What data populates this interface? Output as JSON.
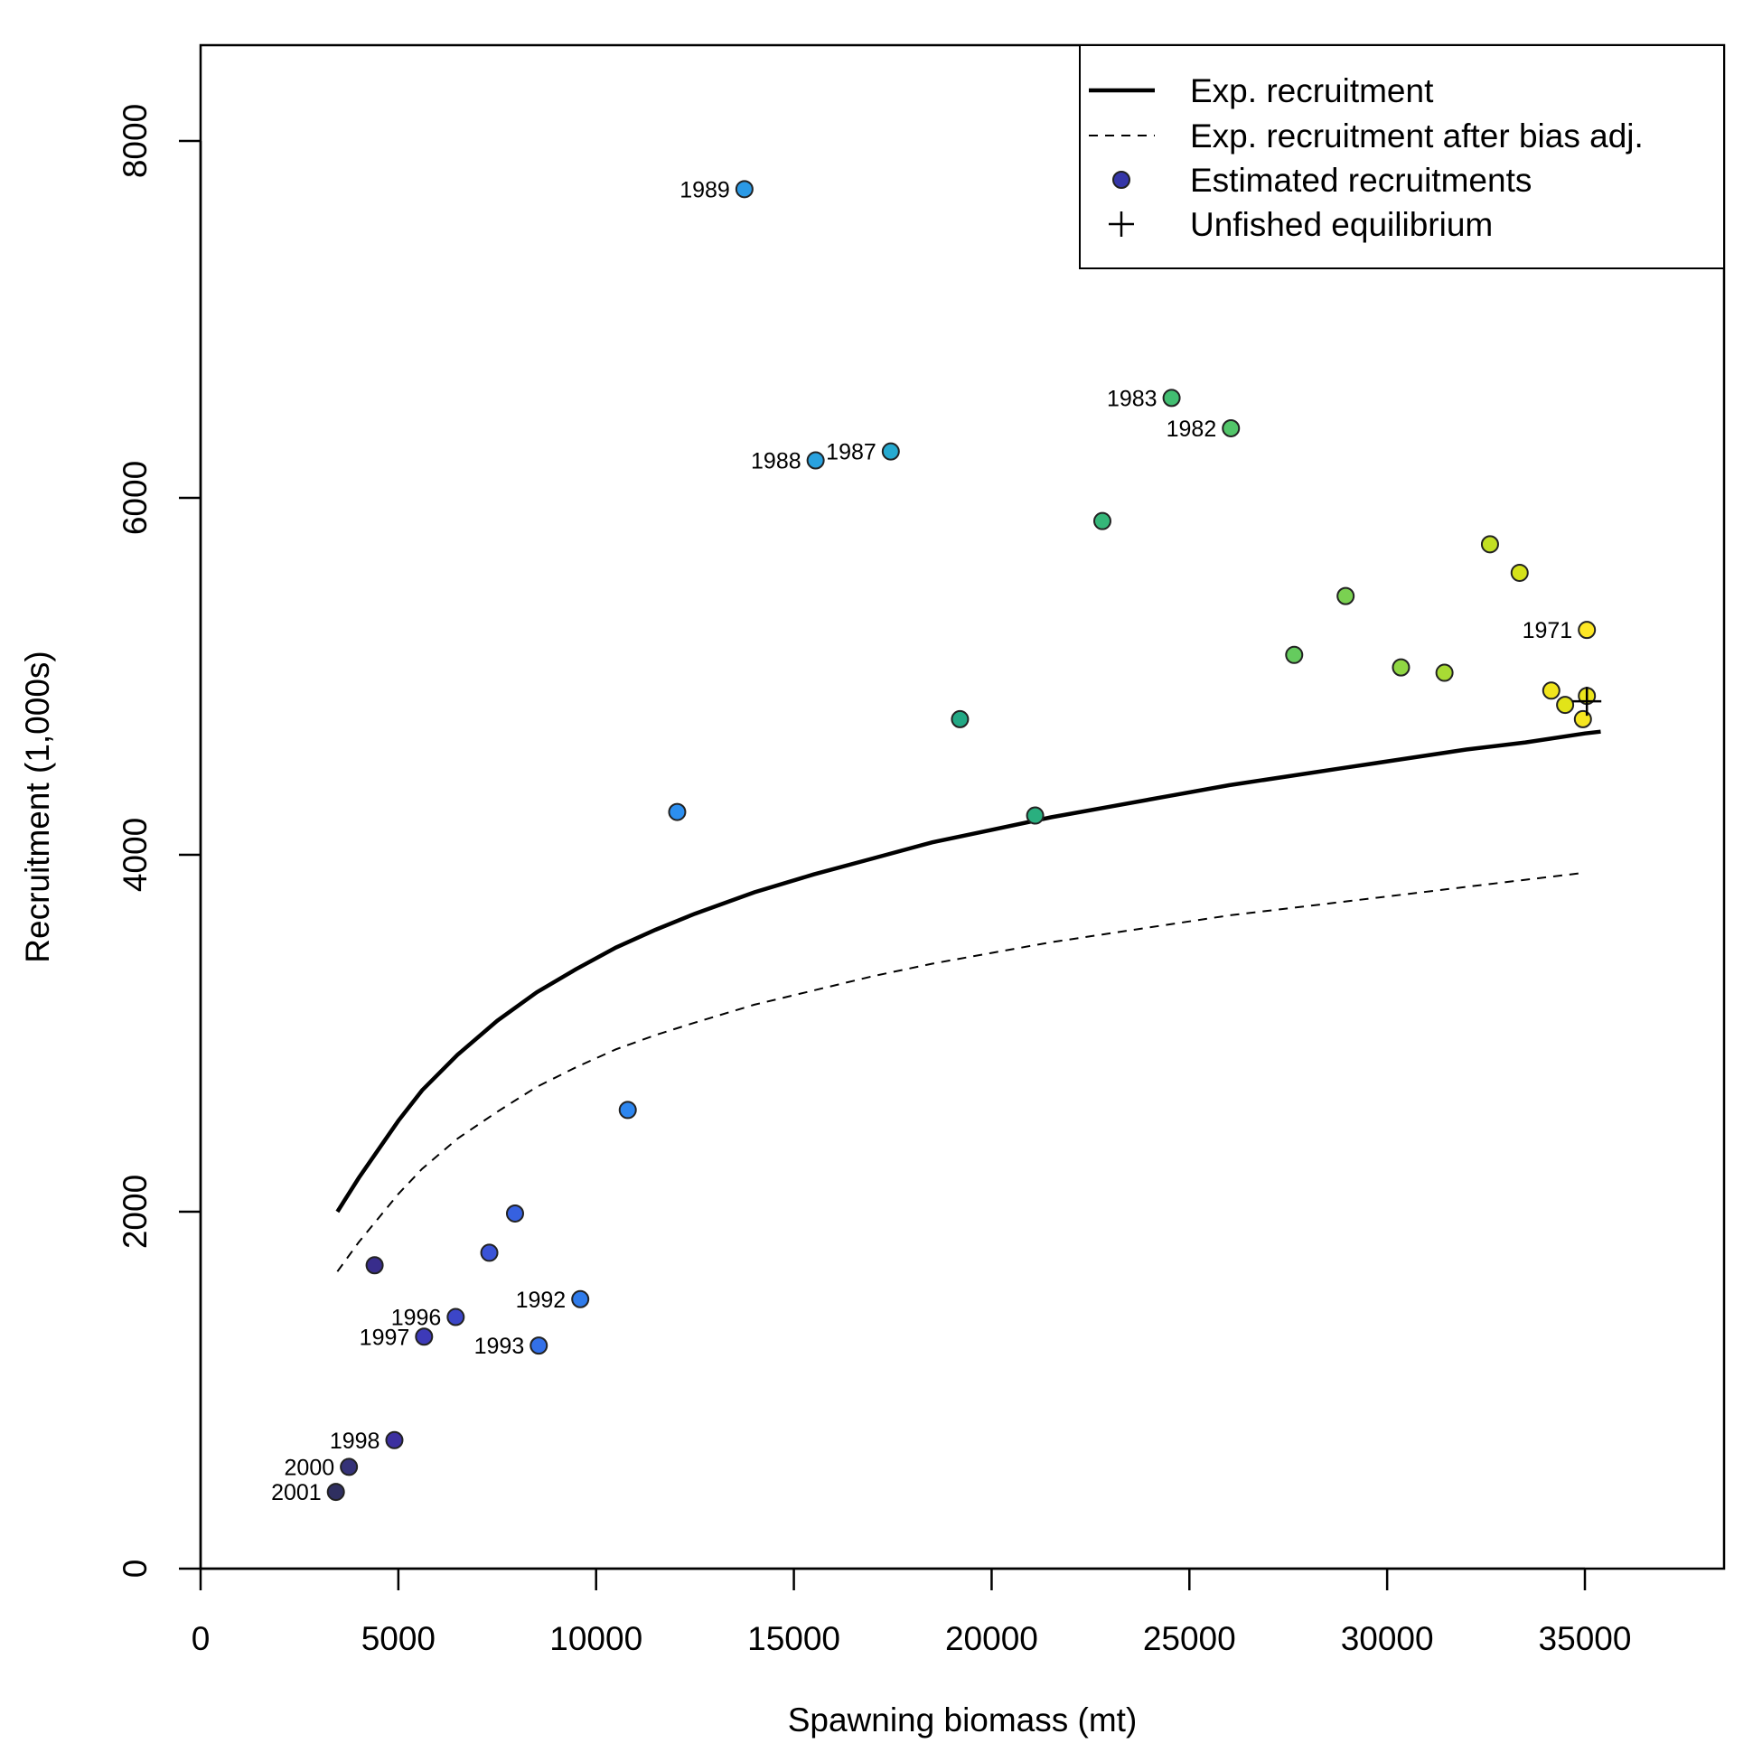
{
  "chart_data": {
    "type": "scatter",
    "title": "",
    "xlabel": "Spawning biomass (mt)",
    "ylabel": "Recruitment (1,000s)",
    "xlim": [
      0,
      38500
    ],
    "ylim": [
      0,
      8500
    ],
    "x_ticks": [
      "0",
      "5000",
      "10000",
      "15000",
      "20000",
      "25000",
      "30000",
      "35000"
    ],
    "y_ticks": [
      "0",
      "2000",
      "4000",
      "6000",
      "8000"
    ],
    "grid": false,
    "legend_position": "top-right",
    "legend": [
      {
        "label": "Exp. recruitment",
        "symbol": "solid-line"
      },
      {
        "label": "Exp. recruitment after bias adj.",
        "symbol": "dashed-line"
      },
      {
        "label": "Estimated recruitments",
        "symbol": "point"
      },
      {
        "label": "Unfished equilibrium",
        "symbol": "plus"
      }
    ],
    "series": [
      {
        "name": "Exp. recruitment",
        "style": "solid",
        "x": [
          3460,
          4000,
          5000,
          5600,
          6500,
          7500,
          8500,
          9500,
          10500,
          11500,
          12500,
          14000,
          15500,
          17000,
          18500,
          20000,
          21500,
          23000,
          24500,
          26000,
          27500,
          29000,
          30500,
          32000,
          33500,
          35000,
          35400
        ],
        "y": [
          2000,
          2190,
          2510,
          2680,
          2880,
          3070,
          3230,
          3360,
          3480,
          3580,
          3670,
          3790,
          3890,
          3980,
          4070,
          4140,
          4210,
          4270,
          4330,
          4390,
          4440,
          4490,
          4540,
          4590,
          4630,
          4680,
          4690
        ]
      },
      {
        "name": "Exp. recruitment after bias adj.",
        "style": "dashed",
        "x": [
          3460,
          4000,
          5000,
          5600,
          6500,
          7500,
          8500,
          9500,
          10500,
          11500,
          12500,
          14000,
          15500,
          17000,
          18500,
          20000,
          21500,
          23000,
          24500,
          26000,
          27500,
          29000,
          30500,
          32000,
          33500,
          35000
        ],
        "y": [
          1665,
          1830,
          2100,
          2240,
          2410,
          2560,
          2700,
          2810,
          2910,
          2990,
          3060,
          3160,
          3240,
          3320,
          3390,
          3450,
          3510,
          3560,
          3610,
          3660,
          3700,
          3740,
          3780,
          3820,
          3860,
          3900
        ]
      }
    ],
    "points": [
      {
        "x": 35050,
        "y": 5260,
        "color": "#fde725",
        "label": "1971"
      },
      {
        "x": 34150,
        "y": 4920,
        "color": "#f1e51d",
        "label": ""
      },
      {
        "x": 34500,
        "y": 4840,
        "color": "#e2e418",
        "label": ""
      },
      {
        "x": 34950,
        "y": 4760,
        "color": "#f6e620",
        "label": ""
      },
      {
        "x": 35050,
        "y": 4890,
        "color": "#ece51b",
        "label": ""
      },
      {
        "x": 33350,
        "y": 5580,
        "color": "#d5e21a",
        "label": ""
      },
      {
        "x": 32600,
        "y": 5740,
        "color": "#c2df23",
        "label": ""
      },
      {
        "x": 31450,
        "y": 5020,
        "color": "#a8db34",
        "label": ""
      },
      {
        "x": 30350,
        "y": 5050,
        "color": "#90d743",
        "label": ""
      },
      {
        "x": 28950,
        "y": 5450,
        "color": "#7ad151",
        "label": ""
      },
      {
        "x": 27650,
        "y": 5120,
        "color": "#65cb5e",
        "label": ""
      },
      {
        "x": 26050,
        "y": 6390,
        "color": "#52c569",
        "label": "1982"
      },
      {
        "x": 24550,
        "y": 6560,
        "color": "#42be71",
        "label": "1983"
      },
      {
        "x": 22800,
        "y": 5870,
        "color": "#35b779",
        "label": ""
      },
      {
        "x": 21100,
        "y": 4220,
        "color": "#2aaf7f",
        "label": ""
      },
      {
        "x": 19200,
        "y": 4760,
        "color": "#22a884",
        "label": ""
      },
      {
        "x": 17450,
        "y": 6260,
        "color": "#26aad0",
        "label": "1987"
      },
      {
        "x": 15550,
        "y": 6210,
        "color": "#29a2df",
        "label": "1988"
      },
      {
        "x": 13750,
        "y": 7730,
        "color": "#2b9ae6",
        "label": "1989"
      },
      {
        "x": 12050,
        "y": 4240,
        "color": "#2c8ff0",
        "label": ""
      },
      {
        "x": 10800,
        "y": 2570,
        "color": "#2d86ef",
        "label": ""
      },
      {
        "x": 9600,
        "y": 1510,
        "color": "#2f7bea",
        "label": "1992"
      },
      {
        "x": 8550,
        "y": 1250,
        "color": "#3370e8",
        "label": "1993"
      },
      {
        "x": 7950,
        "y": 1990,
        "color": "#3661e0",
        "label": ""
      },
      {
        "x": 7300,
        "y": 1770,
        "color": "#3a53d6",
        "label": ""
      },
      {
        "x": 6450,
        "y": 1410,
        "color": "#3c46c8",
        "label": "1996"
      },
      {
        "x": 5650,
        "y": 1300,
        "color": "#3d3ab8",
        "label": "1997"
      },
      {
        "x": 4900,
        "y": 720,
        "color": "#3c30a0",
        "label": "1998"
      },
      {
        "x": 4400,
        "y": 1700,
        "color": "#382d8c",
        "label": ""
      },
      {
        "x": 3750,
        "y": 570,
        "color": "#353278",
        "label": "2000"
      },
      {
        "x": 3420,
        "y": 430,
        "color": "#2f2f60",
        "label": "2001"
      }
    ],
    "unfished_equilibrium": {
      "x": 35050,
      "y": 4860
    }
  }
}
